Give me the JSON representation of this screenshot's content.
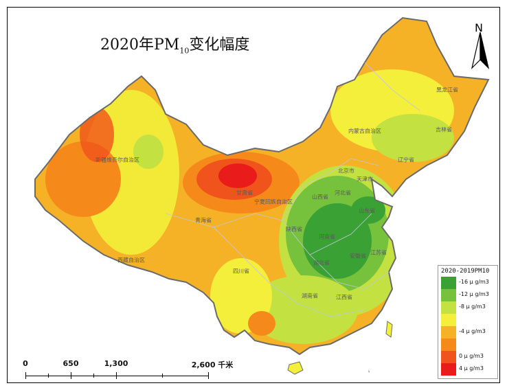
{
  "title": {
    "main": "2020年PM",
    "sub": "10",
    "suffix": "变化幅度"
  },
  "north_label": "N",
  "legend": {
    "title": "2020-2019PM10",
    "items": [
      {
        "label": "-16 μ g/m3",
        "color": "#3aa134"
      },
      {
        "label": "-12 μ g/m3",
        "color": "#77c23c"
      },
      {
        "label": "-8 μ g/m3",
        "color": "#c4e142"
      },
      {
        "label": "",
        "color": "#f3ef3a"
      },
      {
        "label": "-4 μ g/m3",
        "color": "#f6b226"
      },
      {
        "label": "",
        "color": "#f58a1b"
      },
      {
        "label": "0 μ g/m3",
        "color": "#f0531b"
      },
      {
        "label": "4 μ g/m3",
        "color": "#ea1b1b"
      }
    ]
  },
  "scale_bar": {
    "labels": [
      "0",
      "650",
      "1,300",
      "2,600 千米"
    ]
  },
  "provinces": [
    {
      "name": "新疆维吾尔自治区"
    },
    {
      "name": "西藏自治区"
    },
    {
      "name": "青海省"
    },
    {
      "name": "甘肃省"
    },
    {
      "name": "内蒙古自治区"
    },
    {
      "name": "黑龙江省"
    },
    {
      "name": "吉林省"
    },
    {
      "name": "辽宁省"
    },
    {
      "name": "北京市"
    },
    {
      "name": "天津市"
    },
    {
      "name": "河北省"
    },
    {
      "name": "山西省"
    },
    {
      "name": "山东省"
    },
    {
      "name": "宁夏回族自治区"
    },
    {
      "name": "陕西省"
    },
    {
      "name": "河南省"
    },
    {
      "name": "湖北省"
    },
    {
      "name": "安徽省"
    },
    {
      "name": "江苏省"
    },
    {
      "name": "四川省"
    },
    {
      "name": "湖南省"
    },
    {
      "name": "江西省"
    }
  ]
}
